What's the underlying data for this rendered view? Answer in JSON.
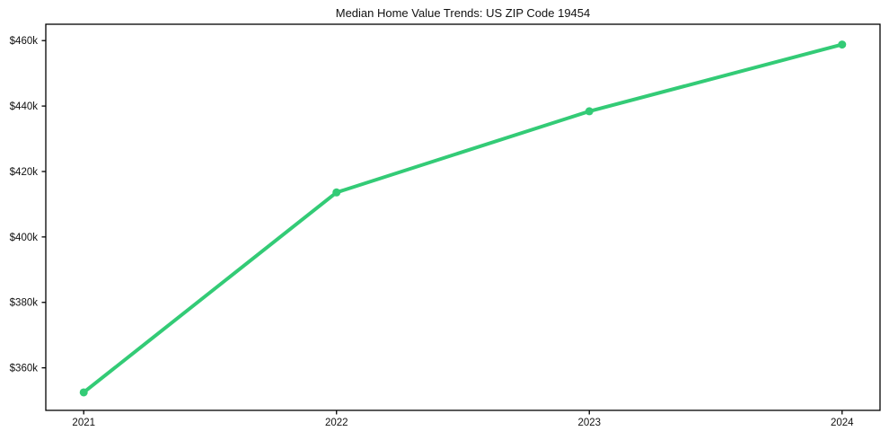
{
  "page": {
    "background": "#ffffff"
  },
  "chart_data": {
    "type": "line",
    "title": "Median Home Value Trends: US ZIP Code 19454",
    "x": [
      2021,
      2022,
      2023,
      2024
    ],
    "x_tick_labels": [
      "2021",
      "2022",
      "2023",
      "2024"
    ],
    "series": [
      {
        "name": "Median Home Value",
        "values_k": [
          352.5,
          413.6,
          438.4,
          458.8
        ]
      }
    ],
    "y_ticks_k": [
      360,
      380,
      400,
      420,
      440,
      460
    ],
    "y_tick_labels": [
      "$360k",
      "$380k",
      "$400k",
      "$420k",
      "$440k",
      "$460k"
    ],
    "xlim": [
      2020.85,
      2024.15
    ],
    "ylim_k": [
      347,
      465
    ],
    "unit": "USD thousands",
    "grid": false,
    "legend": "none",
    "marker": "circle",
    "line_color": "#33cb76",
    "spine_color": "#000000",
    "text_color": "#111111"
  }
}
